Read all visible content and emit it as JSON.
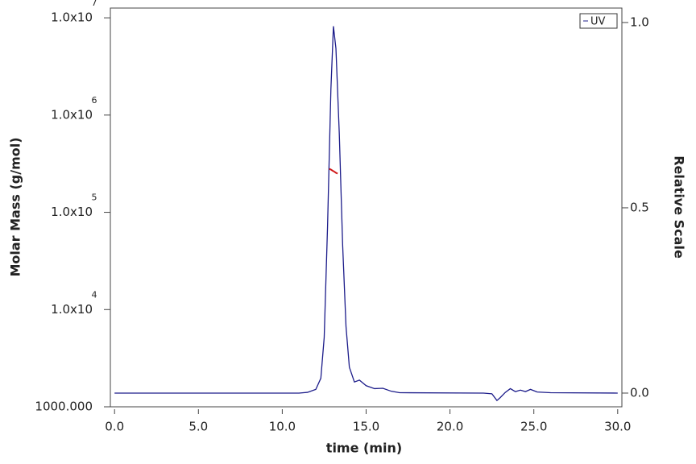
{
  "chart_data": {
    "type": "line",
    "xlabel": "time (min)",
    "ylabel": "Molar Mass (g/mol)",
    "y2label": "Relative Scale",
    "xlim": [
      -0.25,
      30.25
    ],
    "xticks": [
      {
        "value": 0,
        "label": "0.0"
      },
      {
        "value": 5,
        "label": "5.0"
      },
      {
        "value": 10,
        "label": "10.0"
      },
      {
        "value": 15,
        "label": "15.0"
      },
      {
        "value": 20,
        "label": "20.0"
      },
      {
        "value": 25,
        "label": "25.0"
      },
      {
        "value": 30,
        "label": "30.0"
      }
    ],
    "ylim": [
      1000,
      12600000
    ],
    "yscale": "log",
    "yticks": [
      {
        "value": 1000,
        "label": "1000.000"
      },
      {
        "value": 10000,
        "label": "1.0x10",
        "exponent": "4"
      },
      {
        "value": 100000,
        "label": "1.0x10",
        "exponent": "5"
      },
      {
        "value": 1000000,
        "label": "1.0x10",
        "exponent": "6"
      },
      {
        "value": 10000000,
        "label": "1.0x10",
        "exponent": "7"
      }
    ],
    "y2lim": [
      -0.037,
      1.039
    ],
    "y2ticks": [
      {
        "value": 0,
        "label": "0.0"
      },
      {
        "value": 0.5,
        "label": "0.5"
      },
      {
        "value": 1,
        "label": "1.0"
      }
    ],
    "legend": "upper right",
    "series": [
      {
        "name": "UV",
        "color": "#1c1c8a",
        "axis": "y2",
        "x": [
          0,
          11,
          11.5,
          12,
          12.3,
          12.5,
          12.7,
          12.9,
          13.05,
          13.2,
          13.4,
          13.6,
          13.8,
          14.0,
          14.3,
          14.6,
          15.0,
          15.5,
          16,
          16.5,
          17,
          22,
          22.5,
          22.8,
          23.0,
          23.3,
          23.6,
          23.9,
          24.2,
          24.5,
          24.8,
          25.2,
          26,
          30
        ],
        "values": [
          0,
          0,
          0.002,
          0.01,
          0.04,
          0.15,
          0.45,
          0.82,
          0.99,
          0.93,
          0.7,
          0.4,
          0.18,
          0.07,
          0.03,
          0.035,
          0.02,
          0.012,
          0.013,
          0.005,
          0.001,
          0,
          -0.002,
          -0.02,
          -0.012,
          0.002,
          0.012,
          0.004,
          0.008,
          0.004,
          0.01,
          0.003,
          0.001,
          0
        ]
      },
      {
        "color": "#d01818",
        "x": [
          12.8,
          12.9,
          13.0,
          13.1,
          13.2,
          13.3
        ],
        "values": [
          280000,
          275000,
          268000,
          262000,
          255000,
          250000
        ]
      }
    ]
  }
}
